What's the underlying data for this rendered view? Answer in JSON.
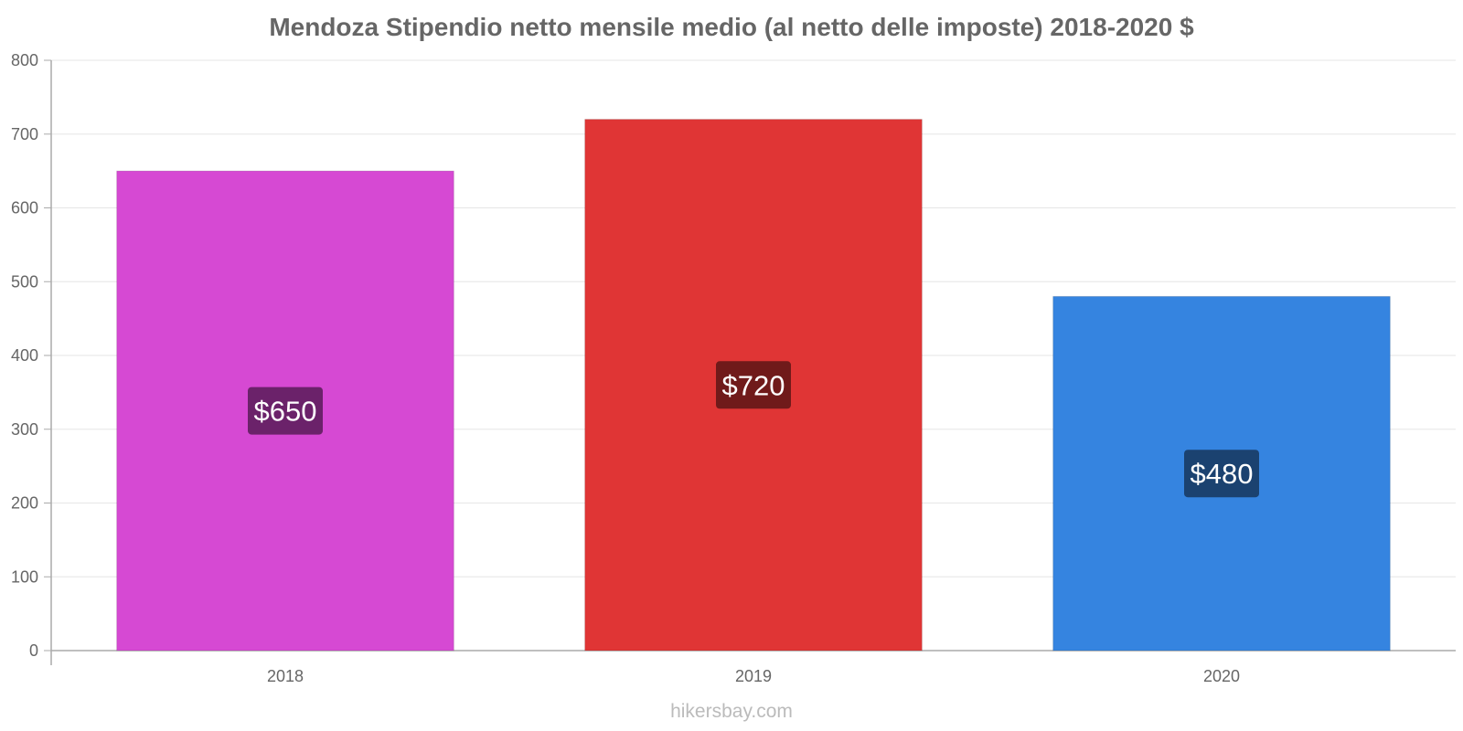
{
  "chart_data": {
    "type": "bar",
    "title": "Mendoza Stipendio netto mensile medio (al netto delle imposte) 2018-2020 $",
    "categories": [
      "2018",
      "2019",
      "2020"
    ],
    "values": [
      650,
      720,
      480
    ],
    "value_labels": [
      "$650",
      "$720",
      "$480"
    ],
    "bar_colors": [
      "#d649d3",
      "#e03535",
      "#3584e0"
    ],
    "label_bg_colors": [
      "#6b226a",
      "#701a1a",
      "#1b4270"
    ],
    "ylim": [
      0,
      800
    ],
    "yticks": [
      0,
      100,
      200,
      300,
      400,
      500,
      600,
      700,
      800
    ],
    "xlabel": "",
    "ylabel": "",
    "grid": true,
    "legend": "none"
  },
  "watermark": "hikersbay.com"
}
